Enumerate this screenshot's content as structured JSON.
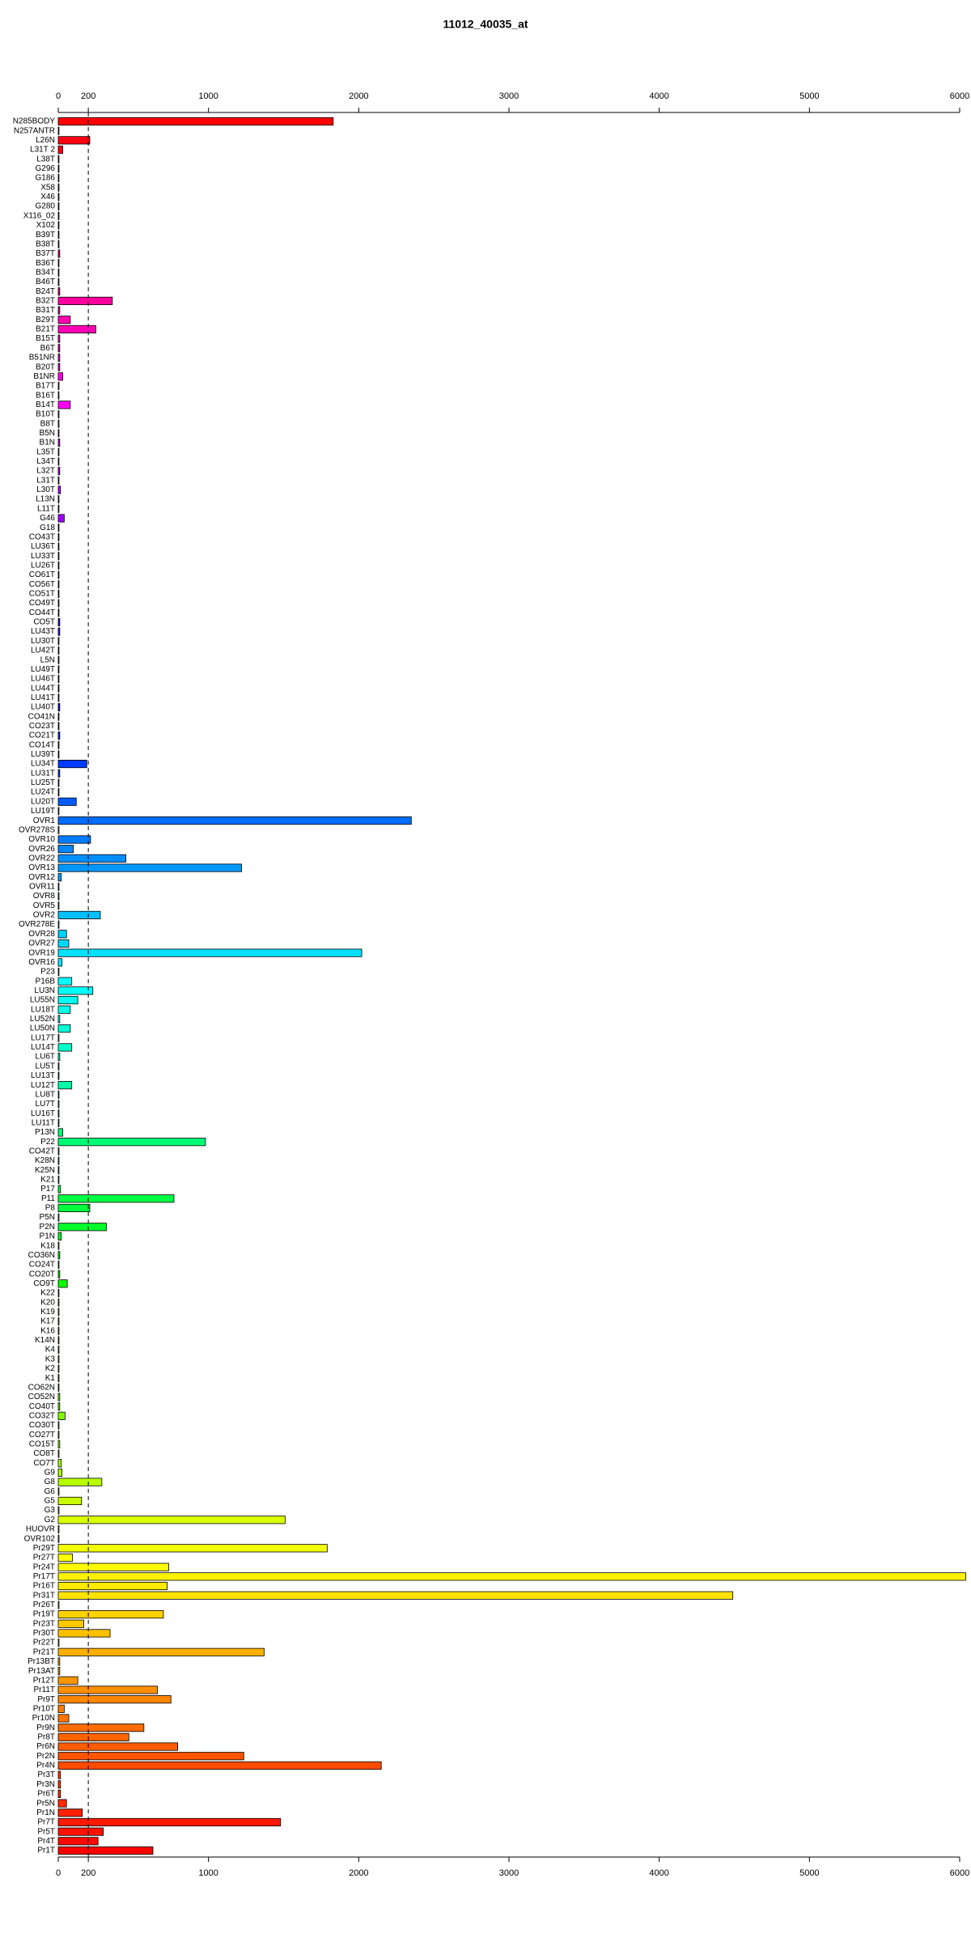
{
  "chart_data": {
    "type": "barh",
    "title": "11012_40035_at",
    "categories": [
      "N285BODY",
      "N257ANTR",
      "L26N",
      "L31T 2",
      "L38T",
      "G296",
      "G186",
      "X58",
      "X46",
      "G280",
      "X116_02",
      "X102",
      "B39T",
      "B38T",
      "B37T",
      "B36T",
      "B34T",
      "B46T",
      "B24T",
      "B32T",
      "B31T",
      "B29T",
      "B21T",
      "B15T",
      "B6T",
      "B51NR",
      "B20T",
      "B1NR",
      "B17T",
      "B16T",
      "B14T",
      "B10T",
      "B8T",
      "B5N",
      "B1N",
      "L35T",
      "L34T",
      "L32T",
      "L31T",
      "L30T",
      "L13N",
      "L11T",
      "G46",
      "G18",
      "CO43T",
      "LU36T",
      "LU33T",
      "LU26T",
      "CO61T",
      "CO56T",
      "CO51T",
      "CO49T",
      "CO44T",
      "CO5T",
      "LU43T",
      "LU30T",
      "LU42T",
      "L5N",
      "LU49T",
      "LU46T",
      "LU44T",
      "LU41T",
      "LU40T",
      "CO41N",
      "CO23T",
      "CO21T",
      "CO14T",
      "LU39T",
      "LU34T",
      "LU31T",
      "LU25T",
      "LU24T",
      "LU20T",
      "LU19T",
      "OVR1",
      "OVR278S",
      "OVR10",
      "OVR26",
      "OVR22",
      "OVR13",
      "OVR12",
      "OVR11",
      "OVR8",
      "OVR5",
      "OVR2",
      "OVR278E",
      "OVR28",
      "OVR27",
      "OVR19",
      "OVR16",
      "P23",
      "P16B",
      "LU3N",
      "LU55N",
      "LU18T",
      "LU52N",
      "LU50N",
      "LU17T",
      "LU14T",
      "LU6T",
      "LU5T",
      "LU13T",
      "LU12T",
      "LU8T",
      "LU7T",
      "LU16T",
      "LU11T",
      "P13N",
      "P22",
      "CO42T",
      "K28N",
      "K25N",
      "K21",
      "P17",
      "P11",
      "P8",
      "P5N",
      "P2N",
      "P1N",
      "K18",
      "CO36N",
      "CO24T",
      "CO20T",
      "CO9T",
      "K22",
      "K20",
      "K19",
      "K17",
      "K16",
      "K14N",
      "K4",
      "K3",
      "K2",
      "K1",
      "CO62N",
      "CO52N",
      "CO40T",
      "CO32T",
      "CO30T",
      "CO27T",
      "CO15T",
      "CO8T",
      "CO7T",
      "G9",
      "G8",
      "G6",
      "G5",
      "G3",
      "G2",
      "HUOVR",
      "OVR102",
      "Pr29T",
      "Pr27T",
      "Pr24T",
      "Pr17T",
      "Pr16T",
      "Pr31T",
      "Pr26T",
      "Pr19T",
      "Pr23T",
      "Pr30T",
      "Pr22T",
      "Pr21T",
      "Pr13BT",
      "Pr13AT",
      "Pr12T",
      "Pr11T",
      "Pr9T",
      "Pr10T",
      "Pr10N",
      "Pr9N",
      "Pr8T",
      "Pr6N",
      "Pr2N",
      "Pr4N",
      "Pr3T",
      "Pr3N",
      "Pr6T",
      "Pr5N",
      "Pr1N",
      "Pr7T",
      "Pr5T",
      "Pr4T",
      "Pr1T"
    ],
    "values": [
      1830,
      5,
      210,
      30,
      5,
      5,
      5,
      5,
      5,
      5,
      5,
      5,
      5,
      5,
      10,
      5,
      5,
      5,
      10,
      360,
      10,
      80,
      250,
      10,
      10,
      10,
      10,
      30,
      5,
      5,
      80,
      5,
      5,
      5,
      10,
      5,
      5,
      10,
      5,
      15,
      5,
      5,
      40,
      5,
      5,
      5,
      5,
      5,
      5,
      5,
      5,
      5,
      5,
      10,
      10,
      5,
      5,
      5,
      5,
      5,
      5,
      5,
      10,
      5,
      5,
      10,
      5,
      5,
      190,
      10,
      5,
      5,
      120,
      5,
      2350,
      5,
      215,
      100,
      450,
      1220,
      20,
      5,
      5,
      5,
      280,
      5,
      55,
      70,
      2020,
      25,
      5,
      90,
      230,
      130,
      80,
      10,
      80,
      5,
      90,
      10,
      5,
      5,
      90,
      5,
      5,
      5,
      5,
      30,
      980,
      5,
      5,
      5,
      5,
      15,
      770,
      210,
      5,
      320,
      20,
      5,
      10,
      5,
      10,
      60,
      5,
      5,
      5,
      5,
      5,
      5,
      5,
      5,
      5,
      5,
      5,
      10,
      10,
      45,
      5,
      5,
      10,
      5,
      20,
      25,
      290,
      5,
      155,
      5,
      1510,
      5,
      5,
      1790,
      95,
      735,
      6040,
      725,
      4490,
      5,
      700,
      170,
      345,
      5,
      1370,
      10,
      10,
      130,
      660,
      750,
      40,
      70,
      570,
      470,
      795,
      1235,
      2150,
      15,
      15,
      15,
      55,
      160,
      1480,
      300,
      265,
      630
    ],
    "color_gradient": [
      "#ff0000",
      "#ff00ff",
      "#0000ff",
      "#00ffff",
      "#00ff00",
      "#ffff00",
      "#ff0000"
    ],
    "xlim": [
      0,
      6000
    ],
    "xticks": [
      0,
      200,
      1000,
      2000,
      3000,
      4000,
      5000,
      6000
    ],
    "reference_line": 200
  }
}
